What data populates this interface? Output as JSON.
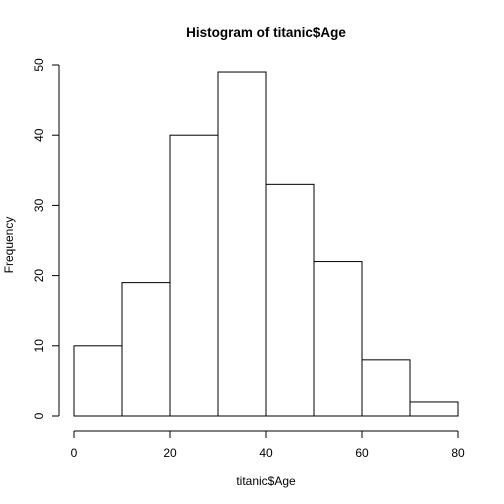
{
  "chart_data": {
    "type": "bar",
    "title": "Histogram of titanic$Age",
    "xlabel": "titanic$Age",
    "ylabel": "Frequency",
    "bins": [
      {
        "start": 0,
        "end": 10,
        "count": 10
      },
      {
        "start": 10,
        "end": 20,
        "count": 19
      },
      {
        "start": 20,
        "end": 30,
        "count": 40
      },
      {
        "start": 30,
        "end": 40,
        "count": 49
      },
      {
        "start": 40,
        "end": 50,
        "count": 33
      },
      {
        "start": 50,
        "end": 60,
        "count": 22
      },
      {
        "start": 60,
        "end": 70,
        "count": 8
      },
      {
        "start": 70,
        "end": 80,
        "count": 2
      }
    ],
    "xlim": [
      0,
      80
    ],
    "ylim": [
      0,
      50
    ],
    "xticks": [
      0,
      20,
      40,
      60,
      80
    ],
    "yticks": [
      0,
      10,
      20,
      30,
      40,
      50
    ],
    "grid": false,
    "bar_fill": "#ffffff",
    "bar_stroke": "#000000"
  }
}
